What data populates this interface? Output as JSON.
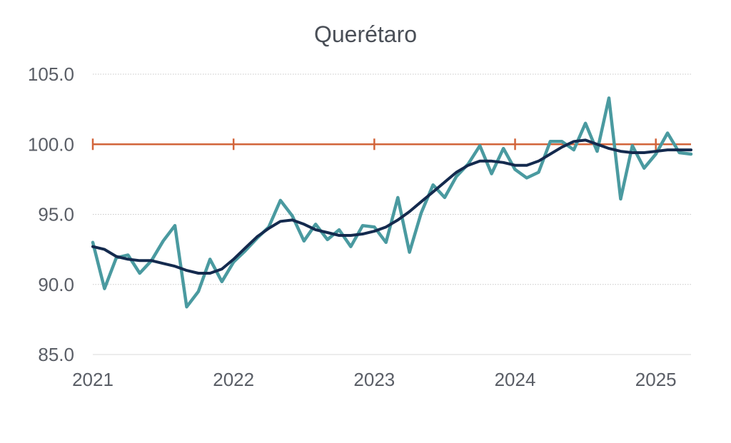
{
  "chart_data": {
    "type": "line",
    "title": "Querétaro",
    "xlabel": "",
    "ylabel": "",
    "ylim": [
      85,
      105
    ],
    "xlim": [
      2021.0,
      2025.25
    ],
    "y_ticks": [
      "85.0",
      "90.0",
      "95.0",
      "100.0",
      "105.0"
    ],
    "x_ticks": [
      "2021",
      "2022",
      "2023",
      "2024",
      "2025"
    ],
    "grid": true,
    "colors": {
      "monthly": "#4a9aa0",
      "trend": "#142a4e",
      "reference": "#d2643a",
      "grid": "#c8c8c8"
    },
    "reference_value": 100.0,
    "series": [
      {
        "key": "monthly",
        "x": [
          2021.0,
          2021.083,
          2021.167,
          2021.25,
          2021.333,
          2021.417,
          2021.5,
          2021.583,
          2021.667,
          2021.75,
          2021.833,
          2021.917,
          2022.0,
          2022.083,
          2022.167,
          2022.25,
          2022.333,
          2022.417,
          2022.5,
          2022.583,
          2022.667,
          2022.75,
          2022.833,
          2022.917,
          2023.0,
          2023.083,
          2023.167,
          2023.25,
          2023.333,
          2023.417,
          2023.5,
          2023.583,
          2023.667,
          2023.75,
          2023.833,
          2023.917,
          2024.0,
          2024.083,
          2024.167,
          2024.25,
          2024.333,
          2024.417,
          2024.5,
          2024.583,
          2024.667,
          2024.75,
          2024.833,
          2024.917,
          2025.0,
          2025.083,
          2025.167,
          2025.25
        ],
        "values": [
          93.0,
          89.7,
          91.9,
          92.1,
          90.8,
          91.7,
          93.1,
          94.2,
          88.4,
          89.5,
          91.8,
          90.2,
          91.6,
          92.4,
          93.3,
          94.1,
          96.0,
          94.9,
          93.1,
          94.3,
          93.2,
          93.9,
          92.7,
          94.2,
          94.1,
          93.0,
          96.2,
          92.3,
          95.1,
          97.1,
          96.2,
          97.7,
          98.6,
          99.9,
          97.9,
          99.7,
          98.2,
          97.6,
          98.0,
          100.2,
          100.2,
          99.6,
          101.5,
          99.5,
          103.3,
          96.1,
          99.9,
          98.3,
          99.3,
          100.8,
          99.4,
          99.3
        ]
      },
      {
        "key": "trend",
        "x": [
          2021.0,
          2021.083,
          2021.167,
          2021.25,
          2021.333,
          2021.417,
          2021.5,
          2021.583,
          2021.667,
          2021.75,
          2021.833,
          2021.917,
          2022.0,
          2022.083,
          2022.167,
          2022.25,
          2022.333,
          2022.417,
          2022.5,
          2022.583,
          2022.667,
          2022.75,
          2022.833,
          2022.917,
          2023.0,
          2023.083,
          2023.167,
          2023.25,
          2023.333,
          2023.417,
          2023.5,
          2023.583,
          2023.667,
          2023.75,
          2023.833,
          2023.917,
          2024.0,
          2024.083,
          2024.167,
          2024.25,
          2024.333,
          2024.417,
          2024.5,
          2024.583,
          2024.667,
          2024.75,
          2024.833,
          2024.917,
          2025.0,
          2025.083,
          2025.167,
          2025.25
        ],
        "values": [
          92.7,
          92.5,
          92.0,
          91.8,
          91.7,
          91.7,
          91.5,
          91.3,
          91.0,
          90.8,
          90.8,
          91.1,
          91.8,
          92.6,
          93.4,
          94.0,
          94.5,
          94.6,
          94.3,
          93.9,
          93.7,
          93.5,
          93.5,
          93.6,
          93.8,
          94.1,
          94.6,
          95.2,
          95.9,
          96.6,
          97.3,
          98.0,
          98.5,
          98.8,
          98.8,
          98.7,
          98.5,
          98.5,
          98.8,
          99.3,
          99.8,
          100.2,
          100.3,
          100.0,
          99.7,
          99.5,
          99.4,
          99.4,
          99.5,
          99.6,
          99.6,
          99.6
        ]
      }
    ]
  }
}
